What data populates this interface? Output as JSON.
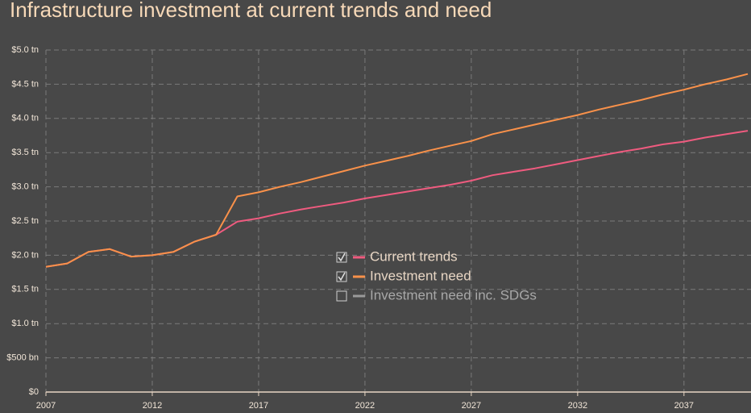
{
  "chart_data": {
    "type": "line",
    "title": "Infrastructure investment at current trends and need",
    "x": [
      2007,
      2008,
      2009,
      2010,
      2011,
      2012,
      2013,
      2014,
      2015,
      2016,
      2017,
      2018,
      2019,
      2020,
      2021,
      2022,
      2023,
      2024,
      2025,
      2026,
      2027,
      2028,
      2029,
      2030,
      2031,
      2032,
      2033,
      2034,
      2035,
      2036,
      2037,
      2038,
      2039,
      2040
    ],
    "series": [
      {
        "name": "Current trends",
        "color": "#ef5b7f",
        "visible": true,
        "values": [
          1.83,
          1.88,
          2.05,
          2.09,
          1.98,
          2.0,
          2.05,
          2.2,
          2.3,
          2.49,
          2.54,
          2.61,
          2.67,
          2.72,
          2.77,
          2.83,
          2.88,
          2.93,
          2.98,
          3.03,
          3.09,
          3.17,
          3.22,
          3.27,
          3.33,
          3.39,
          3.45,
          3.51,
          3.56,
          3.62,
          3.66,
          3.72,
          3.77,
          3.82
        ]
      },
      {
        "name": "Investment need",
        "color": "#f9914a",
        "visible": true,
        "values": [
          1.83,
          1.88,
          2.05,
          2.09,
          1.98,
          2.0,
          2.05,
          2.2,
          2.3,
          2.86,
          2.92,
          3.0,
          3.07,
          3.15,
          3.23,
          3.31,
          3.38,
          3.45,
          3.53,
          3.6,
          3.67,
          3.77,
          3.84,
          3.91,
          3.98,
          4.05,
          4.13,
          4.2,
          4.27,
          4.35,
          4.42,
          4.5,
          4.57,
          4.65
        ]
      },
      {
        "name": "Investment need inc. SDGs",
        "color": "#9a9a9a",
        "visible": false
      }
    ],
    "xlim": [
      2007,
      2040
    ],
    "xticks": [
      2007,
      2012,
      2017,
      2022,
      2027,
      2032,
      2037
    ],
    "ylim": [
      0,
      5
    ],
    "yticks": [
      {
        "value": 0,
        "label": "$0"
      },
      {
        "value": 0.5,
        "label": "$500 bn"
      },
      {
        "value": 1,
        "label": "$1.0 tn"
      },
      {
        "value": 1.5,
        "label": "$1.5 tn"
      },
      {
        "value": 2,
        "label": "$2.0 tn"
      },
      {
        "value": 2.5,
        "label": "$2.5 tn"
      },
      {
        "value": 3,
        "label": "$3.0 tn"
      },
      {
        "value": 3.5,
        "label": "$3.5 tn"
      },
      {
        "value": 4,
        "label": "$4.0 tn"
      },
      {
        "value": 4.5,
        "label": "$4.5 tn"
      },
      {
        "value": 5,
        "label": "$5.0 tn"
      }
    ],
    "grid": true,
    "legend": "center"
  }
}
